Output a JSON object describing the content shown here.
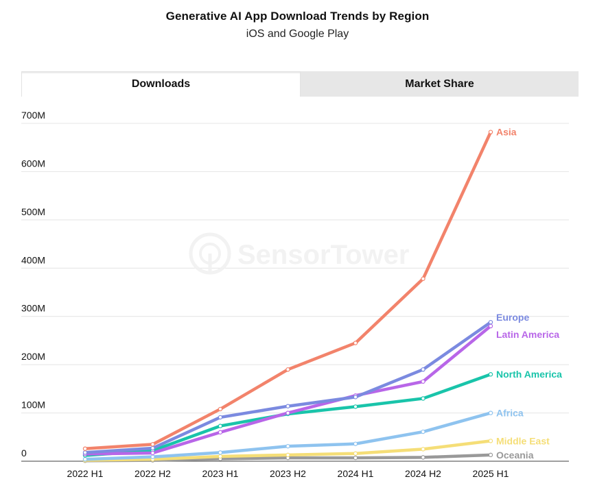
{
  "title": "Generative AI App Download Trends by Region",
  "subtitle": "iOS and Google Play",
  "tabs": [
    {
      "label": "Downloads",
      "active": true
    },
    {
      "label": "Market Share",
      "active": false
    }
  ],
  "watermark": "SensorTower",
  "chart_data": {
    "type": "line",
    "title": "Generative AI App Download Trends by Region",
    "subtitle": "iOS and Google Play",
    "categories": [
      "2022 H1",
      "2022 H2",
      "2023 H1",
      "2023 H2",
      "2024 H1",
      "2024 H2",
      "2025 H1"
    ],
    "ylim": [
      0,
      700
    ],
    "yunit": "M",
    "yticks": [
      {
        "value": 0,
        "label": "0"
      },
      {
        "value": 100,
        "label": "100M"
      },
      {
        "value": 200,
        "label": "200M"
      },
      {
        "value": 300,
        "label": "300M"
      },
      {
        "value": 400,
        "label": "400M"
      },
      {
        "value": 500,
        "label": "500M"
      },
      {
        "value": 600,
        "label": "600M"
      },
      {
        "value": 700,
        "label": "700M"
      }
    ],
    "grid": true,
    "series": [
      {
        "name": "Asia",
        "color": "#f2836b",
        "values": [
          26,
          35,
          108,
          190,
          245,
          378,
          682
        ]
      },
      {
        "name": "Europe",
        "color": "#7b8ae0",
        "values": [
          18,
          27,
          91,
          114,
          133,
          190,
          288
        ]
      },
      {
        "name": "Latin America",
        "color": "#b866e8",
        "values": [
          15,
          17,
          60,
          100,
          136,
          165,
          280
        ]
      },
      {
        "name": "North America",
        "color": "#19c4aa",
        "values": [
          12,
          22,
          73,
          98,
          113,
          130,
          180
        ]
      },
      {
        "name": "Africa",
        "color": "#8ec3ef",
        "values": [
          4,
          9,
          18,
          31,
          36,
          61,
          100
        ]
      },
      {
        "name": "Middle East",
        "color": "#f5de77",
        "values": [
          2,
          4,
          10,
          13,
          16,
          25,
          42
        ]
      },
      {
        "name": "Oceania",
        "color": "#999999",
        "values": [
          1,
          2,
          5,
          7,
          7,
          8,
          13
        ]
      }
    ]
  }
}
